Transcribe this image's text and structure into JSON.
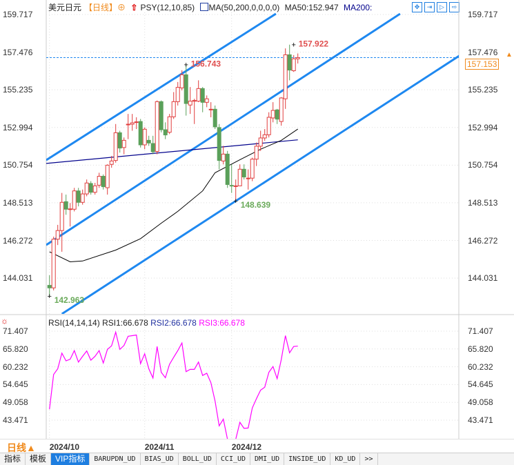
{
  "header": {
    "symbol": "美元日元",
    "period_tag": "【日线】",
    "psy": "PSY(12,10,85)",
    "ma_label": "MA(50,200,0,0,0,0)",
    "ma50": "MA50:152.947",
    "ma200": "MA200:",
    "tool_icons": [
      "crosshair-icon",
      "zoom-in-icon",
      "zoom-out-icon",
      "fullscreen-icon"
    ]
  },
  "colors": {
    "up": "#e03c3c",
    "down": "#5aa05a",
    "channel": "#1e88f0",
    "ma50": "#000000",
    "ma200": "#00008b",
    "rsi": "#ff00ff",
    "last": "#f08a1c"
  },
  "rsi_header": {
    "label": "RSI(14,14,14)",
    "rsi1": "RSI1:66.678",
    "rsi2": "RSI2:66.678",
    "rsi3": "RSI3:66.678"
  },
  "footer": {
    "period": "日线▲",
    "tabs": [
      "指标",
      "模板",
      "VIP指标",
      "BARUPDN_UD",
      "BIAS_UD",
      "BOLL_UD",
      "CCI_UD",
      "DMI_UD",
      "INSIDE_UD",
      "KD_UD",
      ">>"
    ],
    "active_tab": "VIP指标"
  },
  "chart_data": [
    {
      "type": "candlestick",
      "y_ticks": [
        "159.717",
        "157.476",
        "155.235",
        "152.994",
        "150.754",
        "148.513",
        "146.272",
        "144.031"
      ],
      "ylim": [
        142.5,
        159.76
      ],
      "x_ticks": [
        {
          "label": "2024/10",
          "index": 0
        },
        {
          "label": "2024/11",
          "index": 23
        },
        {
          "label": "2024/12",
          "index": 44
        }
      ],
      "last_price": "157.153",
      "annotations": [
        {
          "text": "157.922",
          "index": 59,
          "price": 157.922,
          "kind": "high"
        },
        {
          "text": "156.743",
          "index": 33,
          "price": 156.743,
          "kind": "high"
        },
        {
          "text": "148.639",
          "index": 45,
          "price": 148.639,
          "kind": "low"
        },
        {
          "text": "142.963",
          "index": 0,
          "price": 142.963,
          "kind": "low"
        }
      ],
      "ohlc": [
        [
          143.6,
          144.2,
          142.963,
          143.45
        ],
        [
          143.45,
          146.5,
          143.3,
          146.35
        ],
        [
          146.35,
          147.2,
          146.0,
          146.86
        ],
        [
          146.86,
          149.1,
          145.6,
          148.54
        ],
        [
          148.58,
          149.0,
          147.8,
          148.13
        ],
        [
          148.13,
          148.5,
          147.1,
          148.15
        ],
        [
          148.13,
          149.4,
          148.0,
          149.22
        ],
        [
          149.22,
          149.4,
          148.3,
          148.54
        ],
        [
          148.54,
          149.3,
          148.4,
          149.04
        ],
        [
          149.04,
          149.9,
          148.9,
          149.69
        ],
        [
          149.66,
          149.8,
          149.0,
          149.14
        ],
        [
          149.14,
          149.7,
          149.0,
          149.52
        ],
        [
          149.56,
          150.3,
          149.4,
          150.09
        ],
        [
          150.09,
          150.2,
          149.3,
          149.47
        ],
        [
          149.41,
          150.8,
          149.0,
          150.75
        ],
        [
          150.8,
          151.3,
          150.6,
          151.0
        ],
        [
          151.03,
          153.2,
          150.9,
          152.68
        ],
        [
          152.68,
          152.8,
          151.5,
          151.77
        ],
        [
          151.8,
          152.4,
          151.4,
          152.23
        ],
        [
          153.16,
          153.8,
          152.3,
          153.19
        ],
        [
          153.19,
          153.8,
          152.8,
          153.27
        ],
        [
          153.3,
          153.6,
          152.9,
          153.33
        ],
        [
          153.35,
          153.5,
          151.8,
          151.96
        ],
        [
          151.96,
          153.0,
          151.7,
          152.89
        ],
        [
          152.23,
          152.5,
          151.9,
          152.07
        ],
        [
          152.04,
          152.5,
          151.4,
          151.55
        ],
        [
          151.57,
          154.6,
          151.4,
          154.53
        ],
        [
          154.53,
          154.6,
          152.7,
          152.86
        ],
        [
          152.86,
          153.3,
          152.3,
          152.55
        ],
        [
          152.71,
          153.8,
          152.6,
          153.63
        ],
        [
          153.63,
          155.1,
          153.5,
          154.53
        ],
        [
          154.53,
          155.7,
          154.3,
          155.38
        ],
        [
          155.35,
          156.4,
          155.2,
          156.13
        ],
        [
          156.13,
          156.743,
          153.7,
          154.42
        ],
        [
          154.33,
          155.4,
          153.8,
          154.56
        ],
        [
          154.56,
          154.7,
          153.2,
          154.6
        ],
        [
          154.56,
          155.8,
          154.5,
          155.31
        ],
        [
          155.31,
          155.4,
          153.9,
          154.49
        ],
        [
          154.49,
          154.9,
          154.2,
          154.7
        ],
        [
          154.08,
          154.5,
          153.6,
          154.08
        ],
        [
          154.08,
          154.3,
          152.9,
          153.03
        ],
        [
          152.99,
          153.2,
          150.5,
          151.03
        ],
        [
          151.0,
          151.9,
          150.8,
          151.41
        ],
        [
          151.41,
          151.6,
          149.4,
          149.6
        ],
        [
          149.55,
          150.8,
          149.1,
          149.52
        ],
        [
          149.5,
          149.9,
          148.639,
          149.52
        ],
        [
          149.52,
          150.8,
          149.5,
          150.51
        ],
        [
          150.51,
          150.8,
          149.9,
          150.05
        ],
        [
          149.98,
          150.5,
          149.3,
          149.98
        ],
        [
          149.98,
          151.2,
          149.8,
          151.11
        ],
        [
          151.11,
          152.1,
          150.7,
          151.88
        ],
        [
          151.88,
          152.8,
          151.6,
          152.37
        ],
        [
          152.37,
          152.9,
          152.2,
          152.56
        ],
        [
          152.56,
          153.9,
          152.4,
          153.6
        ],
        [
          153.56,
          154.5,
          153.3,
          154.01
        ],
        [
          154.04,
          154.1,
          153.2,
          153.49
        ],
        [
          153.35,
          154.8,
          153.1,
          154.75
        ],
        [
          154.7,
          157.7,
          154.1,
          157.32
        ],
        [
          157.32,
          157.922,
          155.8,
          156.41
        ],
        [
          156.37,
          157.3,
          156.3,
          157.08
        ],
        [
          157.08,
          157.4,
          156.8,
          157.153
        ]
      ],
      "ma50": [
        [
          0,
          145.6
        ],
        [
          5,
          145.0
        ],
        [
          8,
          145.05
        ],
        [
          16,
          145.7
        ],
        [
          22,
          146.38
        ],
        [
          27,
          147.3
        ],
        [
          31,
          148.0
        ],
        [
          37,
          149.22
        ],
        [
          40,
          150.3
        ],
        [
          46,
          151.07
        ],
        [
          51,
          151.7
        ],
        [
          56,
          152.23
        ],
        [
          60,
          152.9
        ]
      ],
      "ma200": [
        [
          -1,
          150.85
        ],
        [
          60,
          152.26
        ]
      ],
      "channels": [
        [
          [
            -0.8,
            151.05
          ],
          [
            54.7,
            159.76
          ]
        ],
        [
          [
            -0.8,
            146.0
          ],
          [
            84.7,
            159.76
          ]
        ],
        [
          [
            3,
            141.9
          ],
          [
            100.5,
            157.5
          ]
        ]
      ]
    },
    {
      "type": "line",
      "y_ticks": [
        "71.407",
        "65.820",
        "60.232",
        "54.645",
        "49.058",
        "43.471"
      ],
      "ylim": [
        37.5,
        72.5
      ],
      "values": [
        46.9,
        57.8,
        59.6,
        64.5,
        62.1,
        62.6,
        65.3,
        61.7,
        63.5,
        65.2,
        62.3,
        63.5,
        65.3,
        61.4,
        65.7,
        66.8,
        71.1,
        65.7,
        66.9,
        69.8,
        70.0,
        70.2,
        61.2,
        64.3,
        59.6,
        56.7,
        66.6,
        58.5,
        56.8,
        61.0,
        63.2,
        65.3,
        67.7,
        58.7,
        59.4,
        59.4,
        61.7,
        57.5,
        58.2,
        55.2,
        49.5,
        41.7,
        43.8,
        37.5,
        37.5,
        37.5,
        42.8,
        40.9,
        41.0,
        47.3,
        50.2,
        52.9,
        53.8,
        58.5,
        60.3,
        56.5,
        62.5,
        70.0,
        64.6,
        66.6,
        66.7
      ]
    }
  ]
}
